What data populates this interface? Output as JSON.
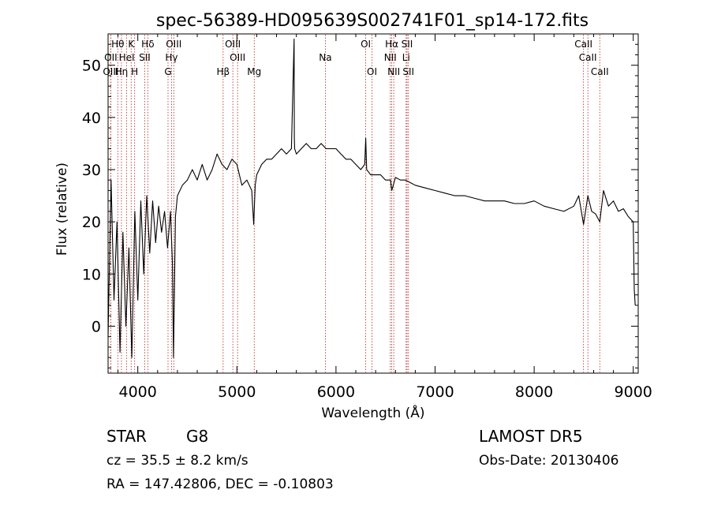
{
  "chart_data": {
    "type": "line",
    "title": "spec-56389-HD095639S002741F01_sp14-172.fits",
    "xlabel": "Wavelength (Å)",
    "ylabel": "Flux (relative)",
    "xlim": [
      3700,
      9050
    ],
    "ylim": [
      -9,
      56
    ],
    "xticks": [
      "4000",
      "5000",
      "6000",
      "7000",
      "8000",
      "9000"
    ],
    "xtick_values": [
      4000,
      5000,
      6000,
      7000,
      8000,
      9000
    ],
    "yticks": [
      "0",
      "10",
      "20",
      "30",
      "40",
      "50"
    ],
    "ytick_values": [
      0,
      10,
      20,
      30,
      40,
      50
    ],
    "line_color": "#000000",
    "marker_color": "#b22222",
    "grid": false,
    "series": [
      {
        "x": [
          3700,
          3730,
          3760,
          3790,
          3820,
          3850,
          3880,
          3910,
          3940,
          3970,
          4000,
          4030,
          4060,
          4090,
          4120,
          4150,
          4180,
          4210,
          4240,
          4270,
          4300,
          4330,
          4350,
          4360,
          4380,
          4400,
          4450,
          4500,
          4550,
          4600,
          4650,
          4700,
          4750,
          4800,
          4850,
          4900,
          4950,
          5000,
          5050,
          5100,
          5150,
          5170,
          5185,
          5200,
          5250,
          5300,
          5350,
          5400,
          5450,
          5500,
          5550,
          5577,
          5580,
          5583,
          5600,
          5650,
          5700,
          5750,
          5800,
          5850,
          5900,
          5950,
          6000,
          6050,
          6100,
          6150,
          6200,
          6250,
          6290,
          6300,
          6310,
          6350,
          6400,
          6450,
          6500,
          6550,
          6563,
          6600,
          6650,
          6700,
          6750,
          6800,
          6900,
          7000,
          7100,
          7200,
          7300,
          7400,
          7500,
          7600,
          7700,
          7800,
          7900,
          8000,
          8100,
          8200,
          8300,
          8400,
          8450,
          8498,
          8542,
          8580,
          8620,
          8662,
          8700,
          8750,
          8800,
          8850,
          8900,
          8950,
          9000,
          9010,
          9020
        ],
        "y": [
          -2,
          28,
          5,
          20,
          -5,
          18,
          0,
          15,
          -6,
          22,
          5,
          24,
          10,
          25,
          14,
          24,
          16,
          23,
          18,
          22,
          15,
          22,
          12,
          -6,
          21,
          25,
          27,
          28,
          30,
          28,
          31,
          28,
          30,
          33,
          31,
          30,
          32,
          31,
          27,
          28,
          26,
          19.5,
          27,
          29,
          31,
          32,
          32,
          33,
          34,
          33,
          34,
          55,
          36,
          34,
          33,
          34,
          35,
          34,
          34,
          35,
          34,
          34,
          34,
          33,
          32,
          32,
          31,
          30,
          31,
          36,
          30,
          29,
          29,
          29,
          28,
          28,
          26,
          28.5,
          28,
          28,
          27.5,
          27,
          26.5,
          26,
          25.5,
          25,
          25,
          24.5,
          24,
          24,
          24,
          23.5,
          23.5,
          24,
          23,
          22.5,
          22,
          23,
          25,
          19.5,
          25,
          22,
          21.5,
          20,
          26,
          23,
          24,
          22,
          22.5,
          21,
          20,
          7,
          4
        ]
      }
    ],
    "lines": [
      {
        "label": "Hθ",
        "x": 3798,
        "row": 1
      },
      {
        "label": "OII",
        "x": 3727,
        "row": 2
      },
      {
        "label": "OIII",
        "x": 3727,
        "row": 3
      },
      {
        "label": "Hη",
        "x": 3835,
        "row": 3
      },
      {
        "label": "K",
        "x": 3933,
        "row": 1
      },
      {
        "label": "HeI",
        "x": 3888,
        "row": 2
      },
      {
        "label": "H",
        "x": 3968,
        "row": 3
      },
      {
        "label": "Hδ",
        "x": 4101,
        "row": 1
      },
      {
        "label": "SII",
        "x": 4070,
        "row": 2
      },
      {
        "label": "OIII",
        "x": 4363,
        "row": 1
      },
      {
        "label": "Hγ",
        "x": 4340,
        "row": 2
      },
      {
        "label": "G",
        "x": 4305,
        "row": 3
      },
      {
        "label": "OIII",
        "x": 4959,
        "row": 1
      },
      {
        "label": "OIII",
        "x": 5007,
        "row": 2
      },
      {
        "label": "Hβ",
        "x": 4861,
        "row": 3
      },
      {
        "label": "Mg",
        "x": 5175,
        "row": 3
      },
      {
        "label": "Na",
        "x": 5893,
        "row": 2
      },
      {
        "label": "OI",
        "x": 6300,
        "row": 1
      },
      {
        "label": "OI",
        "x": 6363,
        "row": 3
      },
      {
        "label": "Hα",
        "x": 6563,
        "row": 1
      },
      {
        "label": "NII",
        "x": 6548,
        "row": 2
      },
      {
        "label": "NII",
        "x": 6583,
        "row": 3
      },
      {
        "label": "SII",
        "x": 6717,
        "row": 1
      },
      {
        "label": "Li",
        "x": 6708,
        "row": 2
      },
      {
        "label": "SII",
        "x": 6731,
        "row": 3
      },
      {
        "label": "CaII",
        "x": 8498,
        "row": 1
      },
      {
        "label": "CaII",
        "x": 8542,
        "row": 2
      },
      {
        "label": "CaII",
        "x": 8662,
        "row": 3
      }
    ]
  },
  "info": {
    "class_label": "STAR",
    "subclass": "G8",
    "survey": "LAMOST DR5",
    "cz": "cz = 35.5 ± 8.2 km/s",
    "obs_date": "Obs-Date: 20130406",
    "coords": "RA = 147.42806, DEC =  -0.10803"
  }
}
